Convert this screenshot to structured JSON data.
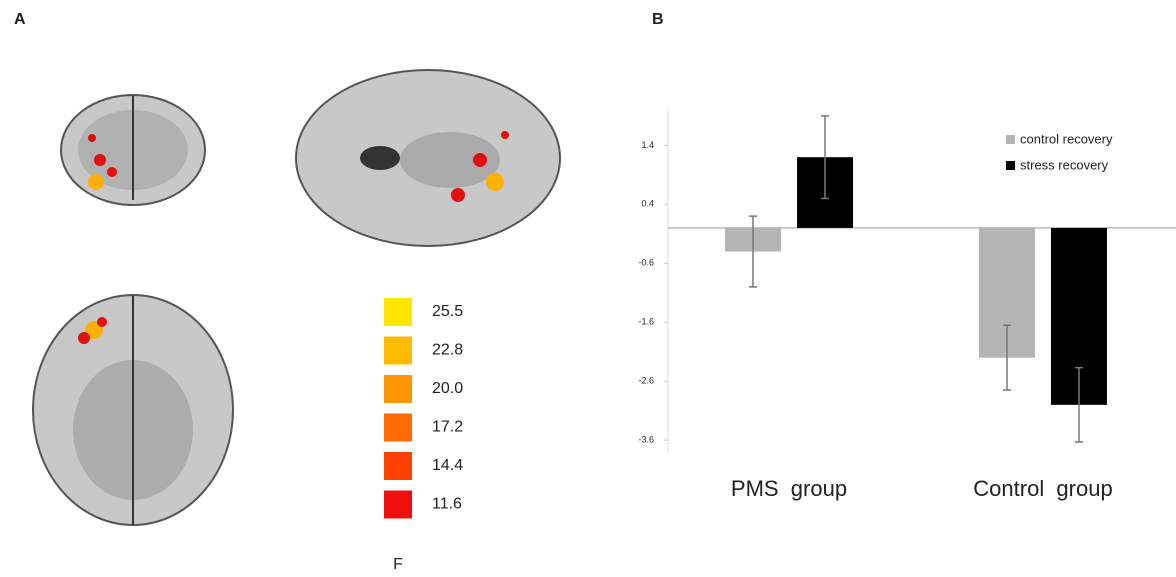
{
  "panel_labels": [
    "A",
    "B"
  ],
  "colorbar": {
    "label": "F",
    "levels": [
      {
        "value": 25.5,
        "label": "25.5",
        "color": "#ffe600"
      },
      {
        "value": 22.8,
        "label": "22.8",
        "color": "#ffbb00"
      },
      {
        "value": 20.0,
        "label": "20.0",
        "color": "#ff9500"
      },
      {
        "value": 17.2,
        "label": "17.2",
        "color": "#ff6a00"
      },
      {
        "value": 14.4,
        "label": "14.4",
        "color": "#ff4000"
      },
      {
        "value": 11.6,
        "label": "11.6",
        "color": "#f01010"
      }
    ]
  },
  "chart_data": {
    "type": "bar",
    "categories": [
      "PMS  group",
      "Control  group"
    ],
    "series": [
      {
        "name": "control recovery",
        "color": "#b4b4b4",
        "values": [
          -0.4,
          -2.2
        ],
        "errors": [
          0.6,
          0.55
        ]
      },
      {
        "name": "stress recovery",
        "color": "#000000",
        "values": [
          1.2,
          -3.0
        ],
        "errors": [
          0.7,
          0.63
        ]
      }
    ],
    "ylim": [
      -3.8,
      2.0
    ],
    "yticks": [
      1.4,
      0.4,
      -0.6,
      -1.6,
      -2.6,
      -3.6
    ],
    "legend": "upper right"
  }
}
